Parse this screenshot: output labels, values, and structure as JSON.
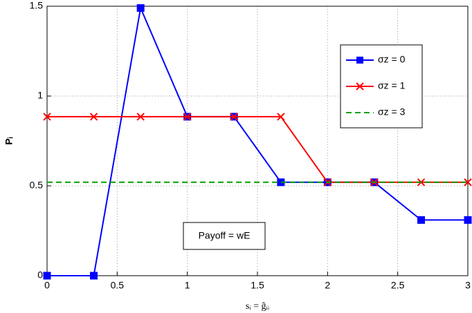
{
  "chart_data": {
    "type": "line",
    "x_label": "sᵢ = ĝᵢᵢ",
    "y_label": "Pᵢ",
    "annotation": "Payoff = wE",
    "series": [
      {
        "name": "σz = 0",
        "color": "#0000ff",
        "marker": "square",
        "dash": false,
        "x": [
          0,
          0.333,
          0.667,
          1,
          1.333,
          1.667,
          2,
          2.333,
          2.667,
          3
        ],
        "values": [
          0,
          0,
          1.49,
          0.885,
          0.885,
          0.52,
          0.52,
          0.52,
          0.31,
          0.31
        ]
      },
      {
        "name": "σz = 1",
        "color": "#ff0000",
        "marker": "x",
        "dash": false,
        "x": [
          0,
          0.333,
          0.667,
          1,
          1.333,
          1.667,
          2,
          2.333,
          2.667,
          3
        ],
        "values": [
          0.885,
          0.885,
          0.885,
          0.885,
          0.885,
          0.885,
          0.52,
          0.52,
          0.52,
          0.52
        ]
      },
      {
        "name": "σz = 3",
        "color": "#00a000",
        "marker": "none",
        "dash": true,
        "x": [
          0,
          3
        ],
        "values": [
          0.52,
          0.52
        ]
      }
    ],
    "xlim": [
      0,
      3
    ],
    "ylim": [
      0,
      1.5
    ],
    "xticks": [
      0,
      0.5,
      1,
      1.5,
      2,
      2.5,
      3
    ],
    "yticks": [
      0,
      0.5,
      1,
      1.5
    ],
    "grid": true,
    "legend": "upper right"
  }
}
